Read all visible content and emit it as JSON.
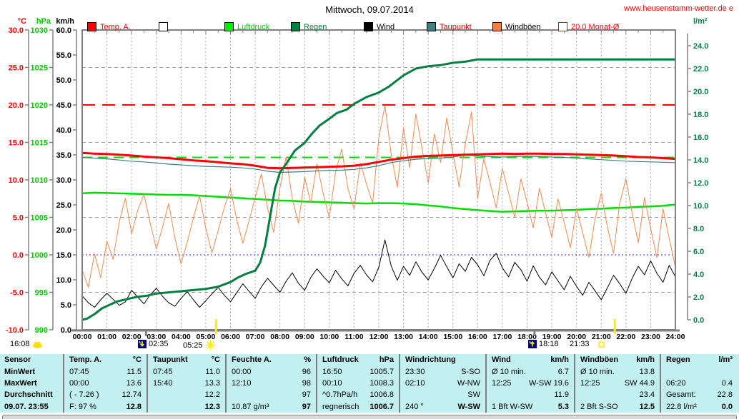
{
  "header": {
    "site": "www.heusenstamm-wetter.de e"
  },
  "legend": {
    "items": [
      {
        "label": "Temp. A.",
        "swatch": "#ff0000",
        "swatch_border": "#000000",
        "label_color": "#ff0000"
      },
      {
        "label": "",
        "swatch": "#ffffff",
        "swatch_border": "#000000",
        "label_color": "#000000"
      },
      {
        "label": "Luftdruck",
        "swatch": "#00ee00",
        "swatch_border": "#000000",
        "label_color": "#00cc00"
      },
      {
        "label": "Regen",
        "swatch": "#007f40",
        "swatch_border": "#000000",
        "label_color": "#007f40"
      },
      {
        "label": "Wind",
        "swatch": "#000000",
        "swatch_border": "#000000",
        "label_color": "#000000"
      },
      {
        "label": "Taupunkt",
        "swatch": "#3f7f7f",
        "swatch_border": "#000000",
        "label_color": "#dd0000"
      },
      {
        "label": "Windböen",
        "swatch": "#f08040",
        "swatch_border": "#000000",
        "label_color": "#000000"
      },
      {
        "label": "20.0 Monat-Ø",
        "swatch": "#ffffff",
        "swatch_border": "#ff0000",
        "label_color": "#ff0000"
      }
    ]
  },
  "annotations": {
    "report_time": "16:08",
    "moonset": "02:35",
    "sunrise": "05:25",
    "moonrise": "18:18",
    "sunset": "21:33"
  },
  "chart_data": {
    "type": "line",
    "title": "Mittwoch, 09.07.2014",
    "x_unit": "hour of day",
    "x_range": [
      0,
      24
    ],
    "grid": "hourly vertical dashed",
    "legend_position": "top",
    "x_tick_labels": [
      "00:00",
      "01:00",
      "02:00",
      "03:00",
      "04:00",
      "05:00",
      "06:00",
      "07:00",
      "08:00",
      "09:00",
      "10:00",
      "11:00",
      "12:00",
      "13:00",
      "14:00",
      "15:00",
      "16:00",
      "17:00",
      "18:00",
      "19:00",
      "20:00",
      "21:00",
      "22:00",
      "23:00",
      "24:00"
    ],
    "axes": {
      "temp": {
        "title": "°C",
        "min": -10,
        "max": 30,
        "tick_step": 5,
        "decimals": 1,
        "color": "#ff0000"
      },
      "pressure": {
        "title": "hPa",
        "min": 990,
        "max": 1030,
        "tick_step": 5,
        "decimals": 0,
        "color": "#00cc00"
      },
      "wind": {
        "title": "km/h",
        "min": 0,
        "max": 60,
        "tick_step": 5,
        "decimals": 1,
        "color": "#000000"
      },
      "rain": {
        "title": "l/m²",
        "min": 0,
        "max": 24,
        "tick_step": 2,
        "decimals": 1,
        "color": "#007f40"
      }
    },
    "ref_lines": [
      {
        "name": "monat-avg-temp-20",
        "axis": "temp",
        "value": 20.0,
        "color": "#ff0000",
        "width": 2,
        "dash": "18,10"
      },
      {
        "name": "pressure-1013",
        "axis": "pressure",
        "value": 1013.0,
        "color": "#00dd00",
        "width": 2,
        "dash": "14,8"
      },
      {
        "name": "freezing-0c",
        "axis": "temp",
        "value": 0.0,
        "color": "#2222ee",
        "width": 1,
        "dash": "2,3"
      },
      {
        "name": "minor-grid-1",
        "axis": "wind",
        "value": 52.5,
        "color": "#9a9a9a",
        "width": 1,
        "dash": "5,4"
      },
      {
        "name": "minor-grid-2",
        "axis": "wind",
        "value": 37.5,
        "color": "#9a9a9a",
        "width": 1,
        "dash": "5,4"
      },
      {
        "name": "minor-grid-3",
        "axis": "wind",
        "value": 22.5,
        "color": "#9a9a9a",
        "width": 1,
        "dash": "5,4"
      },
      {
        "name": "minor-grid-4",
        "axis": "wind",
        "value": 7.5,
        "color": "#9a9a9a",
        "width": 1,
        "dash": "5,4"
      }
    ],
    "events": [
      {
        "name": "moonset",
        "time": "02:35",
        "hour": 2.583,
        "marker": "gray-tick"
      },
      {
        "name": "sunrise",
        "time": "05:25",
        "hour": 5.417,
        "marker": "yellow-line"
      },
      {
        "name": "moonrise",
        "time": "18:18",
        "hour": 18.3,
        "marker": "gray-tick"
      },
      {
        "name": "sunset",
        "time": "21:33",
        "hour": 21.55,
        "marker": "yellow-line"
      }
    ],
    "series": [
      {
        "name": "Luftdruck",
        "axis": "pressure",
        "color": "#00dd00",
        "width": 2.5,
        "x0": 0,
        "dx": 0.5,
        "y": [
          1008.2,
          1008.3,
          1008.25,
          1008.2,
          1008.15,
          1008.1,
          1008.05,
          1008.0,
          1008.0,
          1007.95,
          1007.85,
          1007.75,
          1007.65,
          1007.55,
          1007.45,
          1007.35,
          1007.25,
          1007.2,
          1007.1,
          1007.05,
          1007.0,
          1006.95,
          1006.9,
          1006.85,
          1006.9,
          1006.9,
          1006.85,
          1006.75,
          1006.6,
          1006.45,
          1006.25,
          1006.1,
          1005.95,
          1005.85,
          1005.75,
          1005.8,
          1005.85,
          1005.9,
          1005.9,
          1005.95,
          1006.0,
          1006.1,
          1006.15,
          1006.25,
          1006.3,
          1006.4,
          1006.45,
          1006.55,
          1006.7
        ]
      },
      {
        "name": "Windböen",
        "axis": "wind",
        "color": "#ef8a50",
        "width": 1,
        "x0": 0,
        "dx": 0.25,
        "y": [
          12.0,
          8.5,
          15.2,
          10.4,
          17.8,
          14.1,
          21.6,
          26.3,
          19.2,
          24.0,
          27.1,
          21.4,
          16.2,
          20.5,
          25.3,
          18.4,
          13.2,
          17.5,
          22.4,
          26.8,
          20.3,
          15.4,
          19.8,
          24.5,
          28.2,
          22.1,
          17.3,
          21.8,
          26.5,
          31.2,
          24.3,
          19.5,
          28.4,
          34.6,
          26.2,
          21.3,
          30.5,
          25.4,
          33.2,
          27.3,
          22.4,
          31.5,
          36.2,
          28.3,
          24.2,
          33.4,
          29.2,
          25.3,
          38.4,
          44.9,
          35.2,
          28.5,
          40.3,
          32.4,
          43.2,
          36.3,
          29.4,
          39.2,
          33.5,
          42.4,
          35.3,
          28.6,
          37.2,
          43.6,
          26.3,
          34.2,
          29.5,
          24.4,
          32.3,
          27.4,
          22.5,
          30.2,
          25.5,
          20.4,
          28.3,
          23.4,
          18.5,
          26.2,
          21.5,
          16.4,
          24.3,
          19.4,
          14.5,
          22.2,
          27.3,
          20.5,
          15.3,
          25.4,
          30.2,
          23.3,
          17.4,
          26.5,
          20.3,
          14.4,
          24.2,
          18.3,
          12.5
        ]
      },
      {
        "name": "Wind",
        "axis": "wind",
        "color": "#000000",
        "width": 1,
        "x0": 0,
        "dx": 0.25,
        "y": [
          6.8,
          5.4,
          4.5,
          6.0,
          7.3,
          6.1,
          4.9,
          5.6,
          7.9,
          6.5,
          5.2,
          7.0,
          8.3,
          6.7,
          5.4,
          4.7,
          6.3,
          7.6,
          6.0,
          4.5,
          5.8,
          7.2,
          8.5,
          6.9,
          5.6,
          7.4,
          9.2,
          7.7,
          6.3,
          8.6,
          10.3,
          8.9,
          7.5,
          9.7,
          11.4,
          9.3,
          7.9,
          10.5,
          12.2,
          10.7,
          9.4,
          11.9,
          10.2,
          8.8,
          11.3,
          12.9,
          11.0,
          9.6,
          12.5,
          18.0,
          12.8,
          9.9,
          12.7,
          10.9,
          13.6,
          11.5,
          10.0,
          12.3,
          14.9,
          12.6,
          10.4,
          13.2,
          11.7,
          14.5,
          13.0,
          10.8,
          13.9,
          15.3,
          12.4,
          10.6,
          13.5,
          12.0,
          9.7,
          12.8,
          10.5,
          9.0,
          11.6,
          9.8,
          8.0,
          10.7,
          8.7,
          6.9,
          9.5,
          7.8,
          6.0,
          8.4,
          10.9,
          9.2,
          7.3,
          10.3,
          12.7,
          11.0,
          13.8,
          11.3,
          9.5,
          12.9,
          10.6
        ]
      },
      {
        "name": "Taupunkt",
        "axis": "temp",
        "color": "#3f7f7f",
        "width": 1.2,
        "x0": 0,
        "dx": 0.5,
        "y": [
          13.0,
          12.9,
          12.8,
          12.65,
          12.5,
          12.4,
          12.25,
          12.1,
          12.0,
          11.9,
          11.8,
          11.75,
          11.7,
          11.6,
          11.45,
          11.15,
          11.0,
          11.05,
          11.1,
          11.2,
          11.25,
          11.3,
          11.4,
          11.6,
          11.9,
          12.3,
          12.55,
          12.75,
          12.85,
          12.9,
          13.05,
          13.3,
          13.2,
          13.1,
          13.05,
          13.1,
          13.15,
          13.1,
          13.05,
          13.0,
          12.9,
          12.8,
          12.7,
          12.6,
          12.5,
          12.45,
          12.4,
          12.35,
          12.3
        ]
      },
      {
        "name": "Temp. A.",
        "axis": "temp",
        "color": "#ff0000",
        "width": 3,
        "x0": 0,
        "dx": 0.5,
        "y": [
          13.6,
          13.5,
          13.45,
          13.35,
          13.25,
          13.1,
          13.0,
          12.9,
          12.75,
          12.6,
          12.5,
          12.35,
          12.2,
          12.1,
          11.9,
          11.6,
          11.55,
          11.6,
          11.65,
          11.7,
          11.75,
          11.8,
          11.9,
          12.1,
          12.4,
          12.7,
          12.9,
          13.1,
          13.2,
          13.25,
          13.3,
          13.35,
          13.4,
          13.45,
          13.5,
          13.45,
          13.5,
          13.5,
          13.45,
          13.45,
          13.4,
          13.35,
          13.3,
          13.25,
          13.15,
          13.05,
          13.0,
          12.9,
          12.8
        ]
      },
      {
        "name": "Regen",
        "axis": "rain",
        "color": "#007f40",
        "width": 3,
        "x": [
          0,
          0.2,
          0.5,
          0.8,
          1,
          1.4,
          1.8,
          2.2,
          2.6,
          3,
          3.5,
          4,
          4.5,
          5,
          5.5,
          6,
          6.3,
          6.6,
          7,
          7.2,
          7.4,
          7.6,
          7.8,
          8,
          8.3,
          8.6,
          9,
          9.3,
          9.6,
          10,
          10.3,
          10.7,
          11,
          11.5,
          12,
          12.4,
          12.7,
          13,
          13.5,
          14,
          14.5,
          15,
          15.5,
          16,
          24
        ],
        "y": [
          0,
          0.1,
          0.5,
          1.0,
          1.2,
          1.6,
          1.8,
          2.0,
          2.1,
          2.3,
          2.4,
          2.5,
          2.6,
          2.7,
          2.9,
          3.3,
          3.7,
          4.0,
          4.3,
          5.0,
          6.5,
          9.0,
          11.5,
          12.9,
          13.8,
          14.8,
          15.5,
          16.3,
          17.0,
          17.6,
          18.1,
          18.4,
          18.9,
          19.5,
          19.9,
          20.4,
          20.9,
          21.4,
          22.0,
          22.2,
          22.3,
          22.5,
          22.6,
          22.8,
          22.8
        ]
      }
    ]
  },
  "table": {
    "row_headers": [
      "Sensor",
      "MinWert",
      "MaxWert",
      "Durchschnitt",
      "09.07. 23:55"
    ],
    "columns": [
      {
        "name": "Temp. A.",
        "unit": "°C",
        "r1l": "07:45",
        "r1v": "11.5",
        "r2l": "00:00",
        "r2v": "13.6",
        "r3l": "( - 7.26 )",
        "r3v": "12.74",
        "r4l": "F: 97 %",
        "r4v": "12.8"
      },
      {
        "name": "Taupunkt",
        "unit": "°C",
        "r1l": "07:45",
        "r1v": "11.0",
        "r2l": "15:40",
        "r2v": "13.3",
        "r3l": "",
        "r3v": "12.2",
        "r4l": "",
        "r4v": "12.3"
      },
      {
        "name": "Feuchte A.",
        "unit": "%",
        "r1l": "00:00",
        "r1v": "96",
        "r2l": "12:10",
        "r2v": "98",
        "r3l": "",
        "r3v": "97",
        "r4l": "10.87 g/m³",
        "r4v": "97"
      },
      {
        "name": "Luftdruck",
        "unit": "hPa",
        "r1l": "16:50",
        "r1v": "1005.7",
        "r2l": "00:10",
        "r2v": "1008.3",
        "r3l": "^0.7hPa/h",
        "r3v": "1006.8",
        "r4l": "regnerisch",
        "r4v": "1006.7"
      },
      {
        "name": "Windrichtung",
        "unit": "",
        "r1l": "23:30",
        "r1v": "S-SO",
        "r2l": "02:10",
        "r2v": "W-NW",
        "r3l": "",
        "r3v": "SW",
        "r4l": "240 °",
        "r4v": "W-SW"
      },
      {
        "name": "Wind",
        "unit": "km/h",
        "r1l": "Ø 10 min.",
        "r1v": "6.7",
        "r2l": "12:25",
        "r2v": "W-SW 19.6",
        "r3l": "",
        "r3v": "11.9",
        "r4l": "1 Bft W-SW",
        "r4v": "5.3"
      },
      {
        "name": "Windböen",
        "unit": "km/h",
        "r1l": "Ø 10 min.",
        "r1v": "13.8",
        "r2l": "12:25",
        "r2v": "SW 44.9",
        "r3l": "",
        "r3v": "23.4",
        "r4l": "2 Bft S-SO",
        "r4v": "12.5"
      },
      {
        "name": "Regen",
        "unit": "l/m²",
        "r1l": "",
        "r1v": "",
        "r2l": "06:20",
        "r2v": "0.4",
        "r3l": "Gesamt:",
        "r3v": "22.8",
        "r4l": "22.8 l/m²",
        "r4v": "0.0"
      }
    ]
  }
}
